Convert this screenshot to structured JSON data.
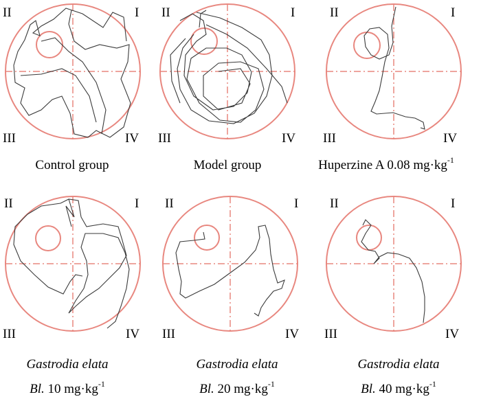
{
  "quadrant_labels": {
    "q1": "I",
    "q2": "II",
    "q3": "III",
    "q4": "IV"
  },
  "colors": {
    "pool": "#e8877f",
    "axes": "#e8877f",
    "path": "#3a3a3a"
  },
  "panels": [
    {
      "caption": "Control group"
    },
    {
      "caption": "Model group"
    },
    {
      "caption": "Huperzine A 0.08 mg·kg",
      "caption_sup": "-1"
    },
    {
      "caption_italic": "Gastrodia elata",
      "caption_line2_italic": "Bl.",
      "caption_line2": " 10 mg·kg",
      "caption_sup": "-1"
    },
    {
      "caption_italic": "Gastrodia elata",
      "caption_line2_italic": "Bl.",
      "caption_line2": " 20 mg·kg",
      "caption_sup": "-1"
    },
    {
      "caption_italic": "Gastrodia elata",
      "caption_line2_italic": "Bl.",
      "caption_line2": " 40 mg·kg",
      "caption_sup": "-1"
    }
  ]
}
